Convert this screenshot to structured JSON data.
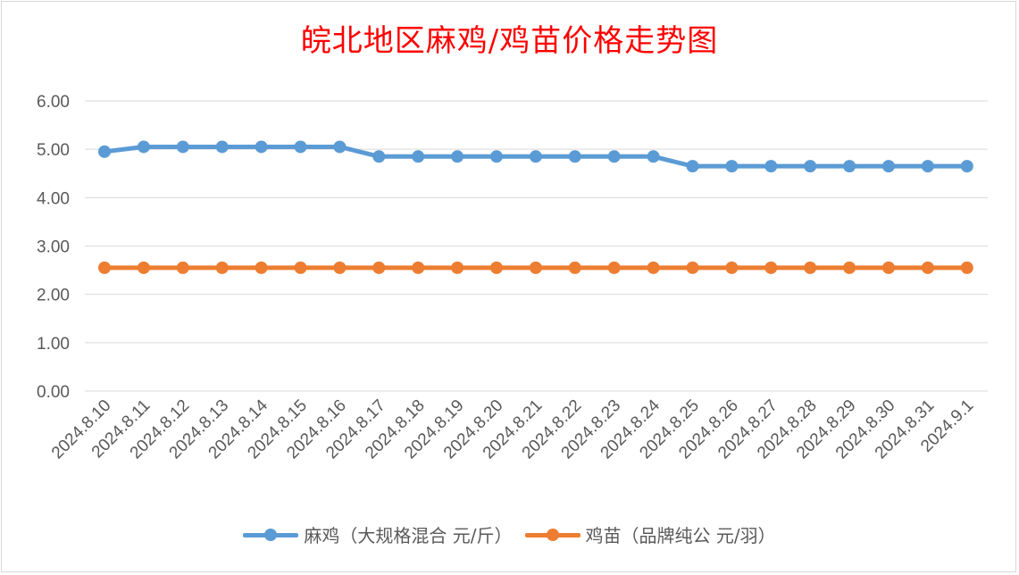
{
  "chart_data": {
    "type": "line",
    "title": "皖北地区麻鸡/鸡苗价格走势图",
    "categories": [
      "2024.8.10",
      "2024.8.11",
      "2024.8.12",
      "2024.8.13",
      "2024.8.14",
      "2024.8.15",
      "2024.8.16",
      "2024.8.17",
      "2024.8.18",
      "2024.8.19",
      "2024.8.20",
      "2024.8.21",
      "2024.8.22",
      "2024.8.23",
      "2024.8.24",
      "2024.8.25",
      "2024.8.26",
      "2024.8.27",
      "2024.8.28",
      "2024.8.29",
      "2024.8.30",
      "2024.8.31",
      "2024.9.1"
    ],
    "series": [
      {
        "name": "麻鸡（大规格混合 元/斤）",
        "color": "#5b9bd5",
        "values": [
          4.95,
          5.05,
          5.05,
          5.05,
          5.05,
          5.05,
          5.05,
          4.85,
          4.85,
          4.85,
          4.85,
          4.85,
          4.85,
          4.85,
          4.85,
          4.65,
          4.65,
          4.65,
          4.65,
          4.65,
          4.65,
          4.65,
          4.65
        ]
      },
      {
        "name": "鸡苗（品牌纯公 元/羽）",
        "color": "#ed7d31",
        "values": [
          2.55,
          2.55,
          2.55,
          2.55,
          2.55,
          2.55,
          2.55,
          2.55,
          2.55,
          2.55,
          2.55,
          2.55,
          2.55,
          2.55,
          2.55,
          2.55,
          2.55,
          2.55,
          2.55,
          2.55,
          2.55,
          2.55,
          2.55
        ]
      }
    ],
    "yticks": [
      "0.00",
      "1.00",
      "2.00",
      "3.00",
      "4.00",
      "5.00",
      "6.00"
    ],
    "ylim": [
      0,
      6
    ],
    "grid": true,
    "legend_position": "bottom"
  }
}
